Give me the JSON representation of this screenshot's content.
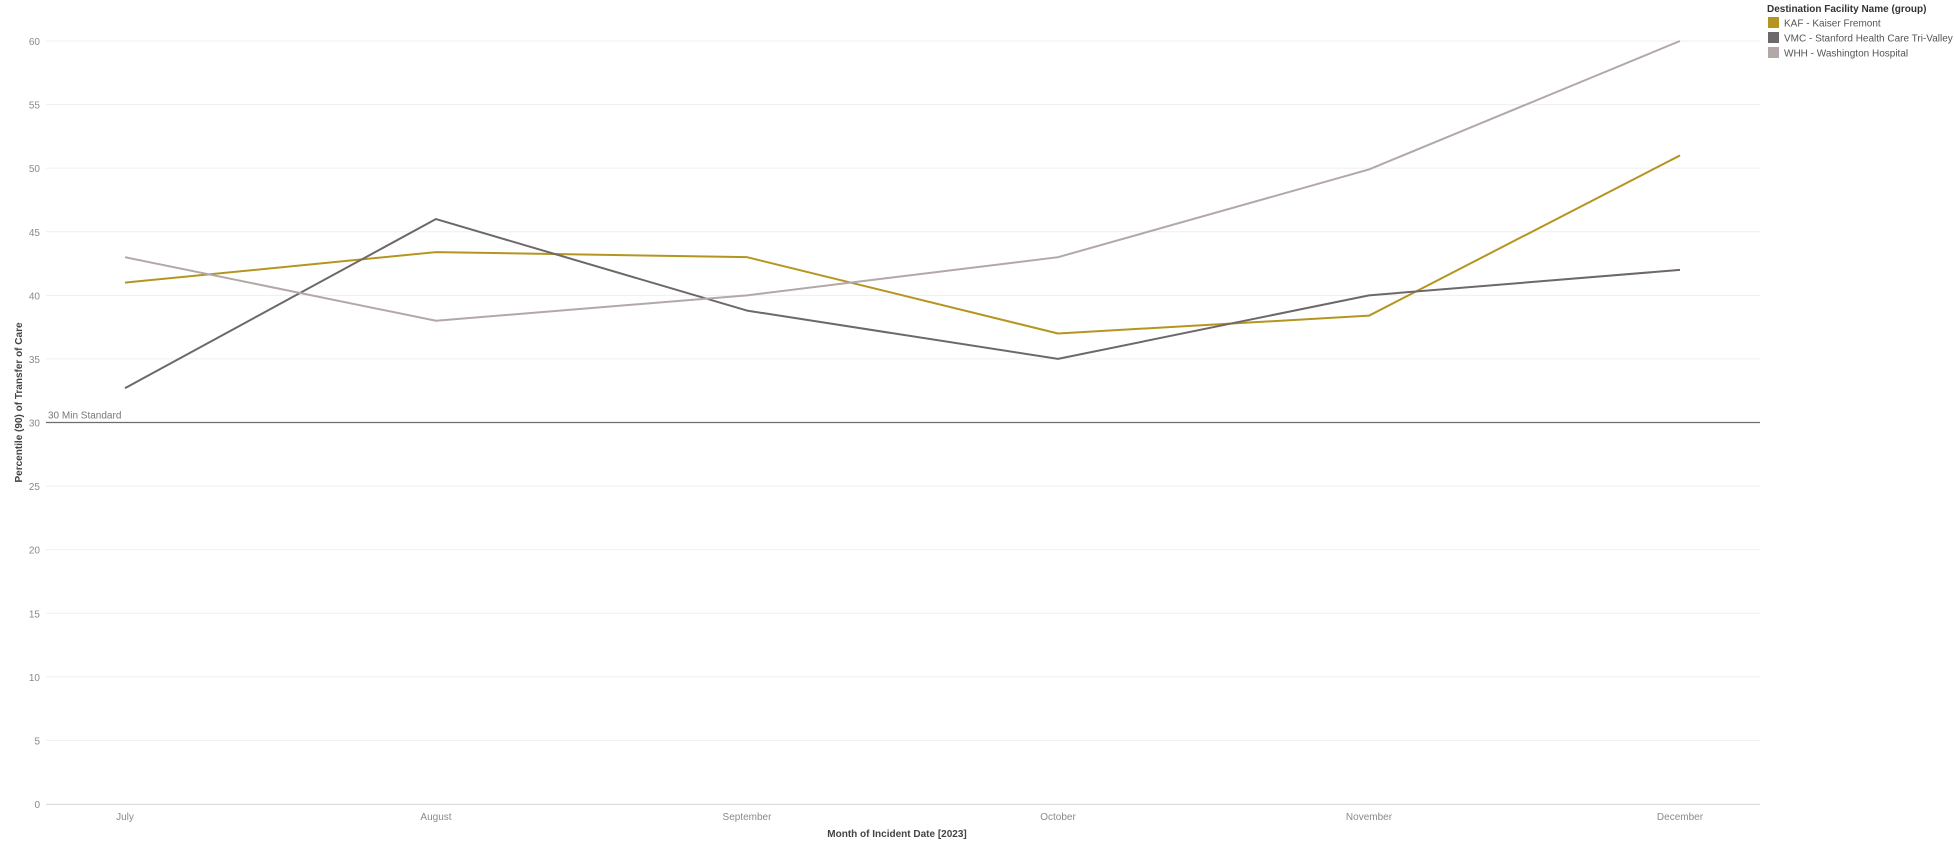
{
  "chart_data": {
    "type": "line",
    "xlabel": "Month of Incident Date [2023]",
    "ylabel": "Percentile (90) of Transfer of Care",
    "categories": [
      "July",
      "August",
      "September",
      "October",
      "November",
      "December"
    ],
    "ylim": [
      0,
      60
    ],
    "yticks": [
      0,
      5,
      10,
      15,
      20,
      25,
      30,
      35,
      40,
      45,
      50,
      55,
      60
    ],
    "grid": true,
    "legend": {
      "title": "Destination Facility Name (group)",
      "placement": "top-right"
    },
    "reference_line": {
      "value": 30,
      "label": "30 Min Standard",
      "color": "#6e6e6e"
    },
    "series": [
      {
        "name": "KAF - Kaiser Fremont",
        "color": "#b5951f",
        "values": [
          41,
          43.4,
          43,
          37,
          38.4,
          51
        ]
      },
      {
        "name": "VMC - Stanford Health Care Tri-Valley",
        "color": "#6e6868",
        "values": [
          32.7,
          46,
          38.8,
          35,
          40,
          42
        ]
      },
      {
        "name": "WHH - Washington Hospital",
        "color": "#b3a8a8",
        "values": [
          43,
          38,
          40,
          43,
          49.9,
          60
        ]
      }
    ]
  }
}
